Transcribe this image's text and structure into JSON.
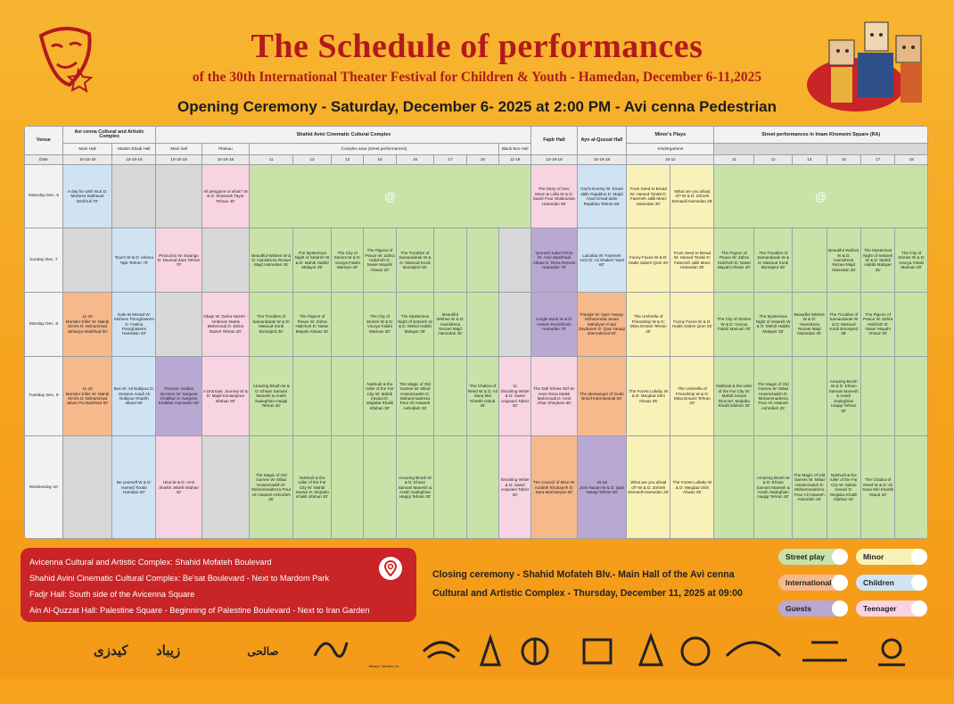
{
  "header": {
    "title": "The Schedule of performances",
    "subtitle": "of the 30th  International Theater Festival for Children & Youth - Hamedan,  December 6-11,2025",
    "opening": "Opening Ceremony - Saturday, December 6- 2025 at 2:00 PM - Avi cenna Pedestrian"
  },
  "table": {
    "h_venue": "Venue",
    "h_avicenna": "Avi cenna Cultural and Artistic Complex",
    "h_shahid": "Shahid Avini Cinematic Cultural Complex",
    "h_fajr": "Fajdr Hall",
    "h_ayn": "Ayn al-Quzzat Hall",
    "h_minor": "Minor's Plays",
    "h_street": "Street performances in Imam Khomeini Square (RA)",
    "s_main": "Main Hall",
    "s_master": "Master Ebadi Hall",
    "s_main2": "Main hall",
    "s_plateau": "Plateau",
    "s_complex": "Complex area (street performances)",
    "s_blackbox": "Black Box Hall",
    "s_kinder": "Kindergartens",
    "h_date": "Date",
    "times": [
      "10-16-18",
      "10-16-18",
      "10-16-18",
      "10-16-18",
      "11",
      "12",
      "13",
      "15",
      "16",
      "17",
      "18",
      "11-16",
      "10-16-18",
      "10-16-18",
      "10-11",
      "11",
      "12",
      "13",
      "15",
      "17",
      "18"
    ],
    "days": {
      "sat": "Saturday Dec. 6",
      "sun": "Sunday Dec. 7",
      "mon": "Monday Dec. 8",
      "tue": "Tuesday Dec. 9",
      "wed": "Wednesday 10"
    },
    "sat": {
      "c1": "A day for wish W.& D: Morteza Sakhavat Dezfouli 70'",
      "c4": "All penguins or what? W & D: Shararah Tayar Tehran 45'",
      "fajr": "The Story of Sun, Moon & Lolla W & D: Saeid Pour Shakourian Hamedan 60'",
      "ayn": "God's Enemy W: Emad aldin Rajabloo D: Majid Arazi Emad aldin Rajabloo Tehran 50'",
      "m1": "From Seed to Bread W: Hamed Torabi D: Fatemeh Jalili Moez Hamedan 30'",
      "m2": "What are you afraid of? W & D: Zohreh Esmaeili Hamedan 25'"
    },
    "sun": {
      "c2": "Touch W & D: Alireza Tajik Tehran 70'",
      "c3": "Pinocchio W: Swarigo D: Davood Zare Tehran 70'",
      "s11": "Beautiful Wishes W & D: Hamidreza Rezaei Majd Hamedan 25'",
      "s12": "The Mysterious Night of Setareh W & D: Mahdi Habibi Malayer 35'",
      "s13": "The City of Stories W & D: Vourya Falahi Marivan 30'",
      "s15": "The Pigeon of Peace W: Zahra Halichoh D: Naser Mayahi Ahwaz 20'",
      "s16": "The Troubles of Samandarak W & D: Masoud Kordi Borosjerd 35'",
      "fajr": "Qormeh Sabzi Pizza W: Amir Mashhadi Abbas D: Reza Rezvan Hamedan 70'",
      "ayn": "Lalcaiba W: Fatemeh Azizi D: Ali Shakeri Yazd 60'",
      "m1": "Funny Faces W & D: Hadis Saberi Qom 25'",
      "m2": "From Seed to Bread W: Hamed Torabi D: Fatemeh Jalili Moez Hamedan 30'",
      "t11": "The Pigeon of Peace W: Zahra Halichoh D: Naser Mayahi Ahwaz 20'",
      "t12": "The Troubles of Samandarak W & D: Masoud Kordi Borosjerd 35'",
      "t15": "Beautiful Wishes W & D: Hamidreza Rezaei Majd Hamedan 25'",
      "t17": "The Mysterious Night of Setareh W & D: Mahdi Habibi Malayer 35'",
      "t18": "The City of Stories W & D: Vourya Falahi Marivan 30'"
    },
    "mon": {
      "c1time": "11-18",
      "c1": "Monster Killer W: Mahdi Simris D: Mohammad Jahanpa Mashhad 90'",
      "c2": "Gale Bi Monad W: Mohsen Pourghasemi D: Fatima Pourghasemi Hamedan 40'",
      "c4": "Okapi W: Zahra Nazeri - Ambreen Malek Mahmoudi D: Zahra Nazeri Tehran 40'",
      "s11": "The Troubles of Samandarak W & D: Masoud Kordi Borosjerd 35'",
      "s12": "The Pigeon of Peace W: Zahra Halichoh D: Naser Mayahi Ahwaz 20'",
      "s15": "The City of Stories W & D: Vourya Falahi Marivan 30'",
      "s16": "The Mysterious Night of Setareh W & D: Mahdi Habibi Malayer 35'",
      "s17": "Beautiful Wishes W & D: Hamidreza Rezaei Majd Hamedan 25'",
      "fajr": "Jungle Book W & D: Hosein Roozkhosh Hamedan 70'",
      "ayn": "Triangle W: Qais Yasaqi-Mohammad Javad Mahdiyan-Foad Zeydaneh D: Qais Yasaqi International 50'",
      "m1": "The Umbrella of Friendship W & D: Mina Emami Tehran 20'",
      "m2": "Funny Faces W & D: Hadis Saberi Qom 25'",
      "t11": "The City of Stories W & D: Vourya Falahi Marivan 30'",
      "t12": "The Mysterious Night of Setareh W & D: Mahdi Habibi Malayer 35'",
      "t13": "Beautiful Wishes W & D: Hamidreza Rezaei Majd Hamedan 25'",
      "t15": "The Troubles of Samandarak W & D: Masoud Kordi Borosjerd 35'",
      "t17": "The Pigeon of Peace W: Zahra Halichoh D: Naser Mayahi Ahwaz 20'"
    },
    "tue": {
      "c1time": "11-18",
      "c1": "Monster Killer W: Mahdi Simris D: Mohammad Jahan Pa Mashhad 90'",
      "c2": "Bus W: Ali Nobijour D: Hossein Asadi Ali Nobijour Kharkh Island 50'",
      "c3": "Thomas' sudden decision W: Nargess Khakbar D: Nargess Khakbar Hamedan 50'",
      "c4": "A Dramatic Journey W & D: Majid Kimiaeipour Isfahan 60'",
      "s11": "Amazing Brush W & D: Ehsan Samani Manesh & Arash Sadeghian Haqiqi Tehran 30'",
      "s15": "Nokhodi & the ruller of the Far City W: Mahdi Iravani D: Mojtaba Khalili Isfahan 30'",
      "s16": "The Magic of Old Games W: Milad Hoseinzadeh D: Mohammadreza Pour Ali Astaneh Ashrafieh 25'",
      "s18": "The Chabra of Reed W & D: Ali Sana Miri Kharkh Island 40'",
      "bbtime": "11",
      "bb": "Shocking Writer & D: Saeid Arqavani Tabriz 30'",
      "fajr": "The Doll Shoes Girl W: Amin Reza Malek Mahmoudi D: Amir Afsar Sheybani 65'",
      "ayn": "The Messanger of Gods Brazil International 60'",
      "m1": "The Forest Lullaby W & D: Meqdad Shiri Ahwaz 35'",
      "m2": "The Umbrella of Friendship W & D: Mina Emami Tehran 20'",
      "t11": "Nokhodi & the ruller of the Far City W: Mahdi Iravani Director: Mojtaba Khalili Isfahan 30'",
      "t12": "The Magic of Old Games W: Milad Hoseinzadeh D: Mohammadreza Pour Ali Astaneh Ashrafieh 25'",
      "t15": "Amazing Brush W & D: Ehsan Samani Manesh & Arash Sadeghian Haqiqi Tehran 30'"
    },
    "wed": {
      "c2": "Be yourself W & D: Hamed Torabi Hamdan 30'",
      "c3": "Hiva W & D: Amir Sheikh Jebelli Isfahan 40'",
      "s11": "The Magic of Old Games W: Milad Hoseinzadeh D: Mohammadreza Pour Ali Astaneh Ashrafieh 25'",
      "s12": "Nokhodi & the ruller of the Far City W: Mahdi Iravani D: Mojtaba Khalili Isfahan 30'",
      "s16": "Amazing Brush W & D: Ehsan Samani Manesh & Arash Sadeghian Haqiqi Tehran 30'",
      "bb": "Shocking Writer & D: Saeid Arqavani Tabriz 30'",
      "fajr": "The Council of Mice W: Azabeh Khobayeh D: Sara Marizaeyan 50'",
      "ayntime": "16-18",
      "ayn": "Josh Navan W & D: Qais Yasaqi Tehran 50'",
      "m1": "What are you afraid of? W & D: Zohreh Esmaeili Hamedan 25'",
      "m2": "The Forest Lullaby W & D: Meqdad Shiri Ahwaz 35'",
      "t12": "Amazing Brush W & D: Ehsan Samani Manesh & Arash Sadeghian Haqiqi Tehran 30'",
      "t13": "The Magic of Old Games W: Milad Hoseinzadeh D: Mohammadreza Pour Ali Astaneh Ashrafieh 25'",
      "t15": "Nokhodi & the ruller of the Far City W: Mahdi Iravani D: Mojtaba Khalili Isfahan 30'",
      "t17": "The Chabra of Reed W & D: Ali Sana Miri Kharkh Island 40'"
    }
  },
  "venues": [
    "Avicenna Cultural and Artistic Complex: Shahid Mofateh Boulevard",
    "Shahid Avini Cinematic Cultural Complex: Be'sat Boulevard - Next to Mardom Park",
    "Fadjr Hall: South side of the Avicenna Square",
    "Ain Al-Quzzat Hall: Palestine Square - Beginning of Palestine Boulevard - Next to Iran Garden"
  ],
  "closing": [
    "Closing ceremony - Shahid Mofateh Blv.- Main Hall of the Avi cenna",
    "Cultural and Artistic Complex - Thursday, December 11, 2025 at 09:00"
  ],
  "legend": {
    "street": "Street play",
    "minor": "Minor",
    "international": "International",
    "children": "Children",
    "guests": "Guests",
    "teenager": "Teenager"
  },
  "colors": {
    "street": "#c9e2a8",
    "minor": "#f9f2b8",
    "international": "#f5b98c",
    "children": "#cfe3f2",
    "guests": "#b9a8d2",
    "teenager": "#f8d4e2",
    "accent": "#b3191c"
  },
  "logos": {
    "l1": "کیدزی",
    "l2": "زیباد",
    "l3": "صالحی",
    "l4": "Alisadr Tourism Co."
  }
}
